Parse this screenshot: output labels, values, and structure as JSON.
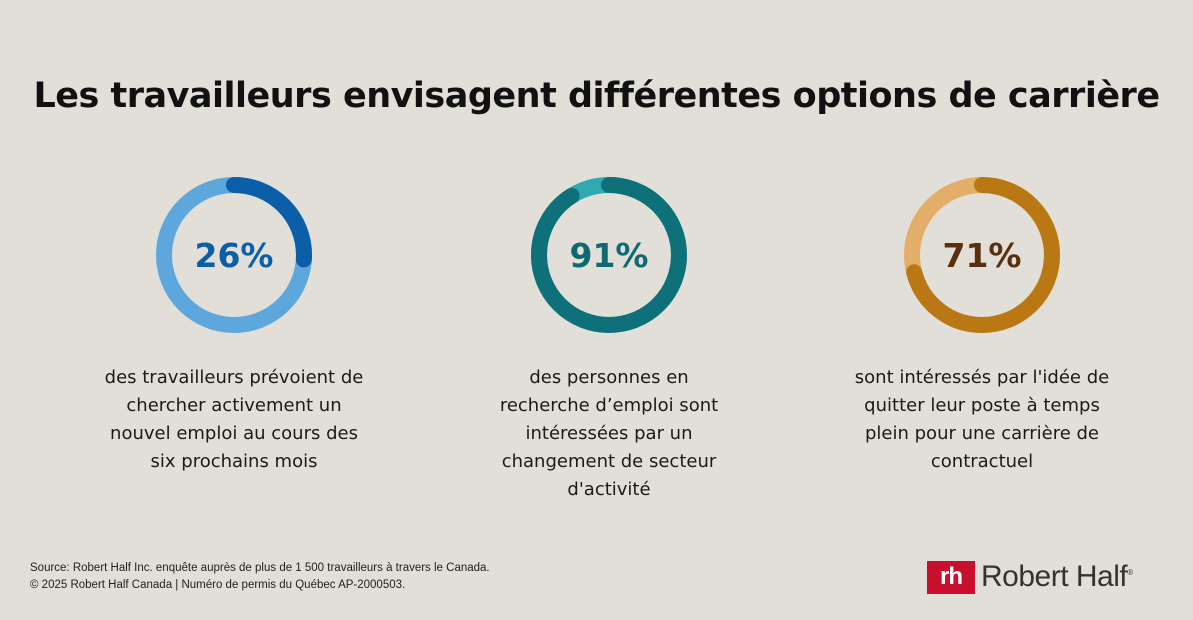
{
  "title": "Les travailleurs envisagent différentes options de carrière",
  "chart_data": [
    {
      "type": "pie",
      "variant": "donut",
      "value": 26,
      "label": "26%",
      "text": "des travailleurs prévoient de chercher activement un nouvel emploi au cours des six prochains mois",
      "colors": {
        "fill": "#0b5ea8",
        "track": "#5ea7dc",
        "label": "#0b5ea8"
      }
    },
    {
      "type": "pie",
      "variant": "donut",
      "value": 91,
      "label": "91%",
      "text": "des personnes en recherche d’emploi sont intéressées par un changement de secteur d'activité",
      "colors": {
        "fill": "#0e7078",
        "track": "#2fa9b2",
        "label": "#0e6a70"
      }
    },
    {
      "type": "pie",
      "variant": "donut",
      "value": 71,
      "label": "71%",
      "text": "sont intéressés par l'idée de quitter leur poste à temps plein pour une carrière de contractuel",
      "colors": {
        "fill": "#b97814",
        "track": "#e2ae6a",
        "label": "#5a2f0e"
      }
    }
  ],
  "footer": {
    "source": "Source: Robert Half Inc. enquête auprès de plus de 1 500 travailleurs à travers le Canada.",
    "copyright": "© 2025 Robert Half Canada | Numéro de permis du Québec AP-2000503."
  },
  "logo": {
    "mark": "rh",
    "name": "Robert Half",
    "registered": "®"
  }
}
